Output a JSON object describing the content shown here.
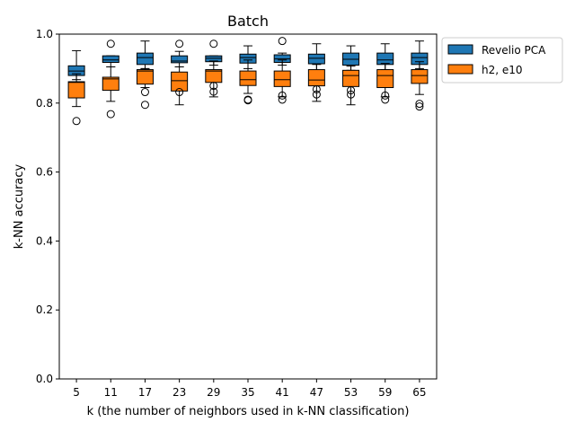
{
  "chart_data": {
    "type": "box",
    "title": "Batch",
    "xlabel": "k (the number of neighbors used in k-NN classification)",
    "ylabel": "k-NN accuracy",
    "ylim": [
      0.0,
      1.0
    ],
    "yticks": [
      "0.0",
      "0.2",
      "0.4",
      "0.6",
      "0.8",
      "1.0"
    ],
    "categories": [
      "5",
      "11",
      "17",
      "23",
      "29",
      "35",
      "41",
      "47",
      "53",
      "59",
      "65"
    ],
    "legend_position": "outside-top-right",
    "series": [
      {
        "name": "Revelio PCA",
        "color": "#1f77b4",
        "boxes": [
          {
            "whislo": 0.868,
            "q1": 0.88,
            "med": 0.893,
            "q3": 0.908,
            "whishi": 0.952,
            "fliers": []
          },
          {
            "whislo": 0.905,
            "q1": 0.918,
            "med": 0.925,
            "q3": 0.937,
            "whishi": 0.937,
            "fliers": [
              0.972
            ]
          },
          {
            "whislo": 0.9,
            "q1": 0.912,
            "med": 0.932,
            "q3": 0.945,
            "whishi": 0.98,
            "fliers": []
          },
          {
            "whislo": 0.905,
            "q1": 0.917,
            "med": 0.922,
            "q3": 0.937,
            "whishi": 0.95,
            "fliers": [
              0.972
            ]
          },
          {
            "whislo": 0.91,
            "q1": 0.92,
            "med": 0.93,
            "q3": 0.937,
            "whishi": 0.937,
            "fliers": [
              0.972
            ]
          },
          {
            "whislo": 0.9,
            "q1": 0.916,
            "med": 0.932,
            "q3": 0.942,
            "whishi": 0.966,
            "fliers": []
          },
          {
            "whislo": 0.91,
            "q1": 0.918,
            "med": 0.928,
            "q3": 0.94,
            "whishi": 0.945,
            "fliers": [
              0.98
            ]
          },
          {
            "whislo": 0.895,
            "q1": 0.914,
            "med": 0.93,
            "q3": 0.942,
            "whishi": 0.972,
            "fliers": []
          },
          {
            "whislo": 0.895,
            "q1": 0.91,
            "med": 0.927,
            "q3": 0.945,
            "whishi": 0.966,
            "fliers": []
          },
          {
            "whislo": 0.897,
            "q1": 0.912,
            "med": 0.925,
            "q3": 0.945,
            "whishi": 0.972,
            "fliers": []
          },
          {
            "whislo": 0.9,
            "q1": 0.912,
            "med": 0.932,
            "q3": 0.945,
            "whishi": 0.98,
            "fliers": []
          }
        ]
      },
      {
        "name": "h2, e10",
        "color": "#ff7f0e",
        "boxes": [
          {
            "whislo": 0.79,
            "q1": 0.815,
            "med": 0.86,
            "q3": 0.862,
            "whishi": 0.885,
            "fliers": [
              0.748
            ]
          },
          {
            "whislo": 0.805,
            "q1": 0.837,
            "med": 0.87,
            "q3": 0.875,
            "whishi": 0.905,
            "fliers": [
              0.768
            ]
          },
          {
            "whislo": 0.845,
            "q1": 0.855,
            "med": 0.893,
            "q3": 0.897,
            "whishi": 0.9,
            "fliers": [
              0.832,
              0.795
            ]
          },
          {
            "whislo": 0.795,
            "q1": 0.835,
            "med": 0.865,
            "q3": 0.89,
            "whishi": 0.905,
            "fliers": [
              0.832
            ]
          },
          {
            "whislo": 0.818,
            "q1": 0.86,
            "med": 0.893,
            "q3": 0.897,
            "whishi": 0.922,
            "fliers": [
              0.85,
              0.833
            ]
          },
          {
            "whislo": 0.828,
            "q1": 0.851,
            "med": 0.868,
            "q3": 0.893,
            "whishi": 0.925,
            "fliers": [
              0.81,
              0.808
            ]
          },
          {
            "whislo": 0.818,
            "q1": 0.848,
            "med": 0.868,
            "q3": 0.893,
            "whishi": 0.925,
            "fliers": [
              0.822,
              0.81
            ]
          },
          {
            "whislo": 0.805,
            "q1": 0.85,
            "med": 0.867,
            "q3": 0.897,
            "whishi": 0.912,
            "fliers": [
              0.84,
              0.825
            ]
          },
          {
            "whislo": 0.795,
            "q1": 0.848,
            "med": 0.88,
            "q3": 0.895,
            "whishi": 0.907,
            "fliers": [
              0.837,
              0.825
            ]
          },
          {
            "whislo": 0.818,
            "q1": 0.845,
            "med": 0.88,
            "q3": 0.897,
            "whishi": 0.915,
            "fliers": [
              0.822,
              0.81
            ]
          },
          {
            "whislo": 0.825,
            "q1": 0.857,
            "med": 0.88,
            "q3": 0.897,
            "whishi": 0.92,
            "fliers": [
              0.798,
              0.79
            ]
          }
        ]
      }
    ]
  }
}
